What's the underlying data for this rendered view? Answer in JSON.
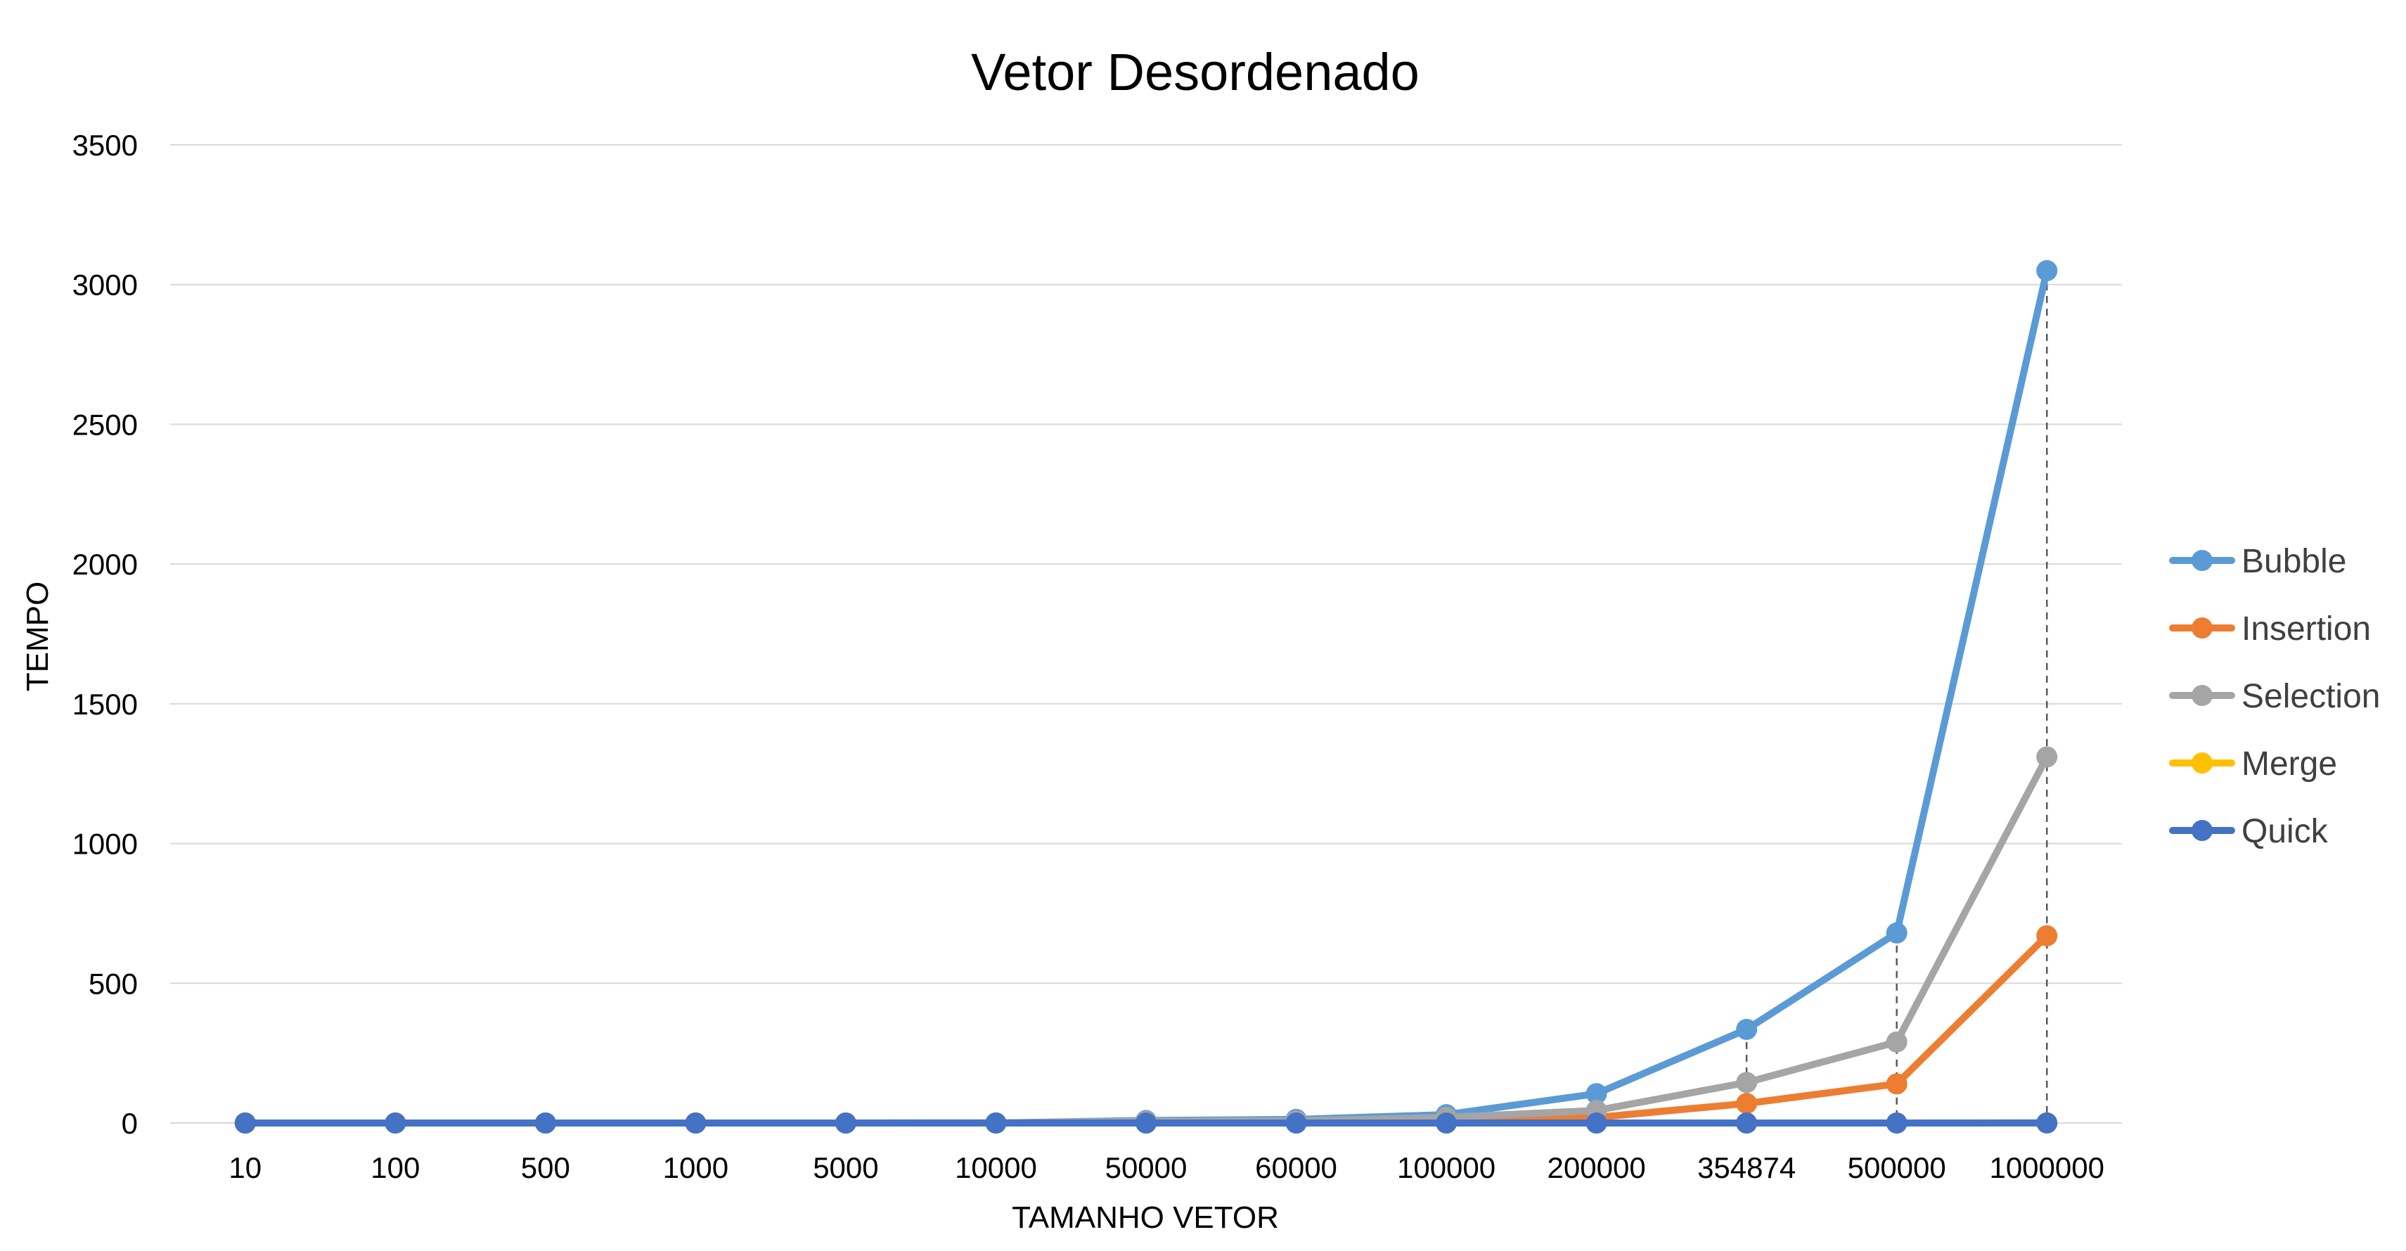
{
  "chart_data": {
    "type": "line",
    "title": "Vetor Desordenado",
    "xlabel": "TAMANHO VETOR",
    "ylabel": "TEMPO",
    "categories": [
      "10",
      "100",
      "500",
      "1000",
      "5000",
      "10000",
      "50000",
      "60000",
      "100000",
      "200000",
      "354874",
      "500000",
      "1000000"
    ],
    "ylim": [
      0,
      3500
    ],
    "yticks": [
      0,
      500,
      1000,
      1500,
      2000,
      2500,
      3000,
      3500
    ],
    "grid": true,
    "legend_position": "right",
    "drop_lines": true,
    "series": [
      {
        "name": "Bubble",
        "color": "#5B9BD5",
        "values": [
          0,
          0,
          0,
          0,
          0.1,
          0.4,
          9,
          13,
          30,
          105,
          335,
          680,
          3050
        ]
      },
      {
        "name": "Insertion",
        "color": "#ED7D31",
        "values": [
          0,
          0,
          0,
          0,
          0,
          0.1,
          2,
          3,
          8,
          20,
          70,
          140,
          670
        ]
      },
      {
        "name": "Selection",
        "color": "#A5A5A5",
        "values": [
          0,
          0,
          0,
          0,
          0.1,
          0.2,
          6,
          8,
          20,
          45,
          145,
          290,
          1310
        ]
      },
      {
        "name": "Merge",
        "color": "#FFC000",
        "values": [
          0,
          0,
          0,
          0,
          0,
          0,
          0,
          0,
          0,
          0,
          0.1,
          0.1,
          0.3
        ]
      },
      {
        "name": "Quick",
        "color": "#4472C4",
        "values": [
          0,
          0,
          0,
          0,
          0,
          0,
          0,
          0,
          0,
          0,
          0.1,
          0.1,
          0.2
        ]
      }
    ]
  }
}
